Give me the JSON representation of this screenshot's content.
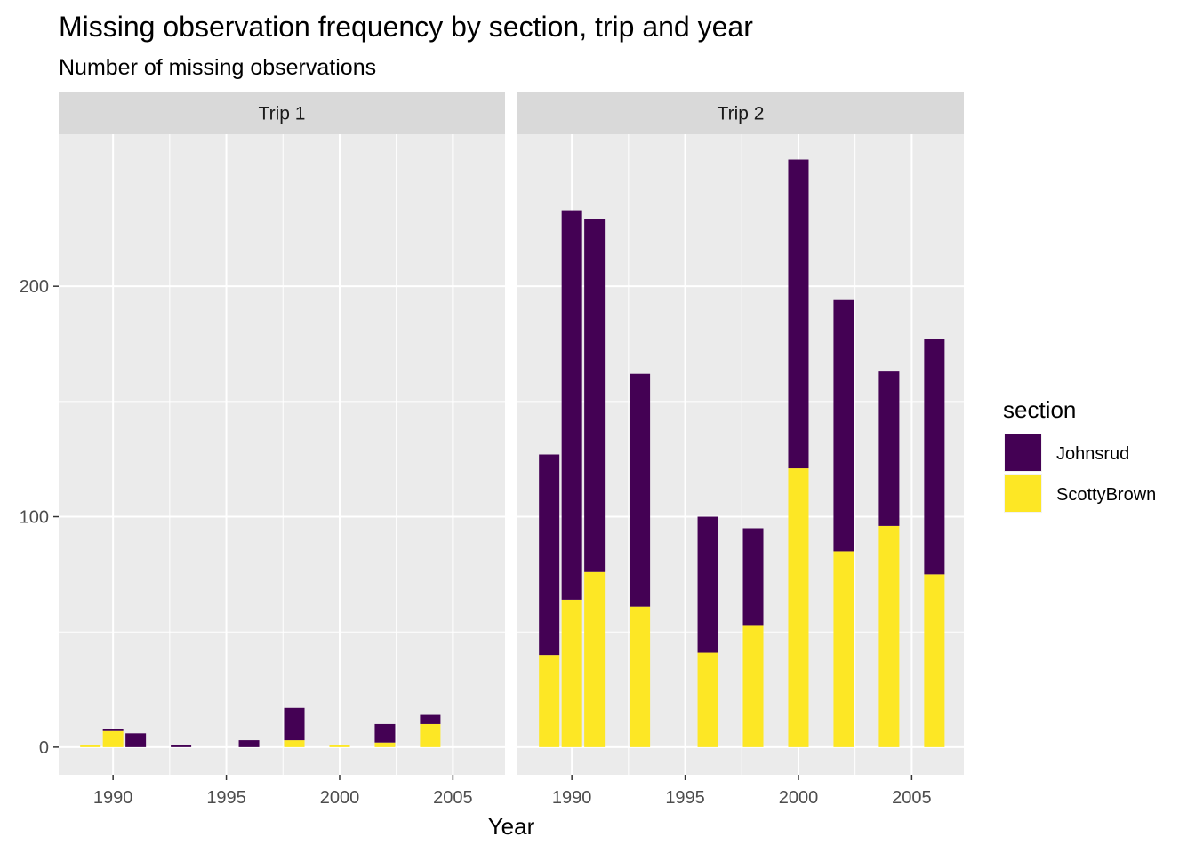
{
  "chart_data": {
    "type": "bar",
    "stacked": true,
    "title": "Missing observation frequency by section, trip and year",
    "subtitle": "Number of missing observations",
    "xlabel": "Year",
    "ylabel": "",
    "xlim": [
      1987.6,
      2007.3
    ],
    "ylim": [
      -12,
      266
    ],
    "x_ticks": [
      1990,
      1995,
      2000,
      2005
    ],
    "y_ticks": [
      0,
      100,
      200
    ],
    "grid": true,
    "legend": {
      "title": "section",
      "position": "right",
      "entries": [
        {
          "name": "Johnsrud",
          "color": "#440154"
        },
        {
          "name": "ScottyBrown",
          "color": "#FDE725"
        }
      ]
    },
    "panels": [
      {
        "label": "Trip 1",
        "bars": [
          {
            "year": 1989,
            "ScottyBrown": 1,
            "Johnsrud": 0
          },
          {
            "year": 1990,
            "ScottyBrown": 7,
            "Johnsrud": 1
          },
          {
            "year": 1991,
            "ScottyBrown": 0,
            "Johnsrud": 6
          },
          {
            "year": 1993,
            "ScottyBrown": 0,
            "Johnsrud": 1
          },
          {
            "year": 1996,
            "ScottyBrown": 0,
            "Johnsrud": 3
          },
          {
            "year": 1998,
            "ScottyBrown": 3,
            "Johnsrud": 14
          },
          {
            "year": 2000,
            "ScottyBrown": 1,
            "Johnsrud": 0
          },
          {
            "year": 2002,
            "ScottyBrown": 2,
            "Johnsrud": 8
          },
          {
            "year": 2004,
            "ScottyBrown": 10,
            "Johnsrud": 4
          }
        ]
      },
      {
        "label": "Trip 2",
        "bars": [
          {
            "year": 1989,
            "ScottyBrown": 40,
            "Johnsrud": 87
          },
          {
            "year": 1990,
            "ScottyBrown": 64,
            "Johnsrud": 169
          },
          {
            "year": 1991,
            "ScottyBrown": 76,
            "Johnsrud": 153
          },
          {
            "year": 1993,
            "ScottyBrown": 61,
            "Johnsrud": 101
          },
          {
            "year": 1996,
            "ScottyBrown": 41,
            "Johnsrud": 59
          },
          {
            "year": 1998,
            "ScottyBrown": 53,
            "Johnsrud": 42
          },
          {
            "year": 2000,
            "ScottyBrown": 121,
            "Johnsrud": 134
          },
          {
            "year": 2002,
            "ScottyBrown": 85,
            "Johnsrud": 109
          },
          {
            "year": 2004,
            "ScottyBrown": 96,
            "Johnsrud": 67
          },
          {
            "year": 2006,
            "ScottyBrown": 75,
            "Johnsrud": 102
          }
        ]
      }
    ]
  }
}
